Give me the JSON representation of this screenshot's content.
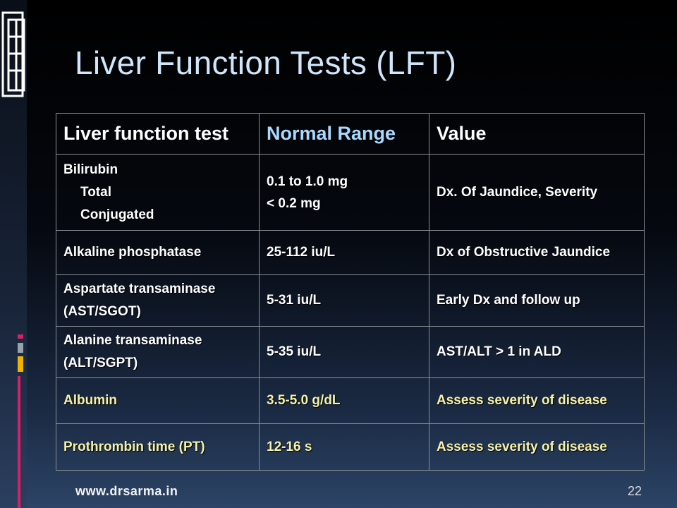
{
  "slide": {
    "title": "Liver Function Tests (LFT)",
    "footer_url": "www.drsarma.in",
    "page_number": "22"
  },
  "table": {
    "headers": [
      "Liver function test",
      "Normal Range",
      "Value"
    ],
    "rows": [
      {
        "test": "Bilirubin",
        "sub_items": [
          "Total",
          "Conjugated"
        ],
        "range_lines": [
          "0.1 to 1.0 mg",
          "< 0.2 mg"
        ],
        "value": "Dx. Of Jaundice, Severity"
      },
      {
        "test": "Alkaline phosphatase",
        "range": "25-112 iu/L",
        "value": "Dx of Obstructive Jaundice"
      },
      {
        "test_lines": [
          "Aspartate transaminase",
          "(AST/SGOT)"
        ],
        "range": "5-31 iu/L",
        "value": "Early Dx and follow up"
      },
      {
        "test_lines": [
          "Alanine transaminase",
          "(ALT/SGPT)"
        ],
        "range": "5-35 iu/L",
        "value": "AST/ALT > 1 in ALD"
      },
      {
        "test": "Albumin",
        "range": "3.5-5.0 g/dL",
        "value": "Assess severity of disease"
      },
      {
        "test": "Prothrombin time (PT)",
        "range": "12-16 s",
        "value": "Assess severity of disease"
      }
    ]
  },
  "colors": {
    "title": "#cfe6fb",
    "header_highlight": "#a9d9ff",
    "highlight_row_text": "#f5f1a8",
    "accent_yellow": "#f0b400",
    "accent_pink": "#d8206a",
    "accent_gray": "#9aa3ad"
  }
}
